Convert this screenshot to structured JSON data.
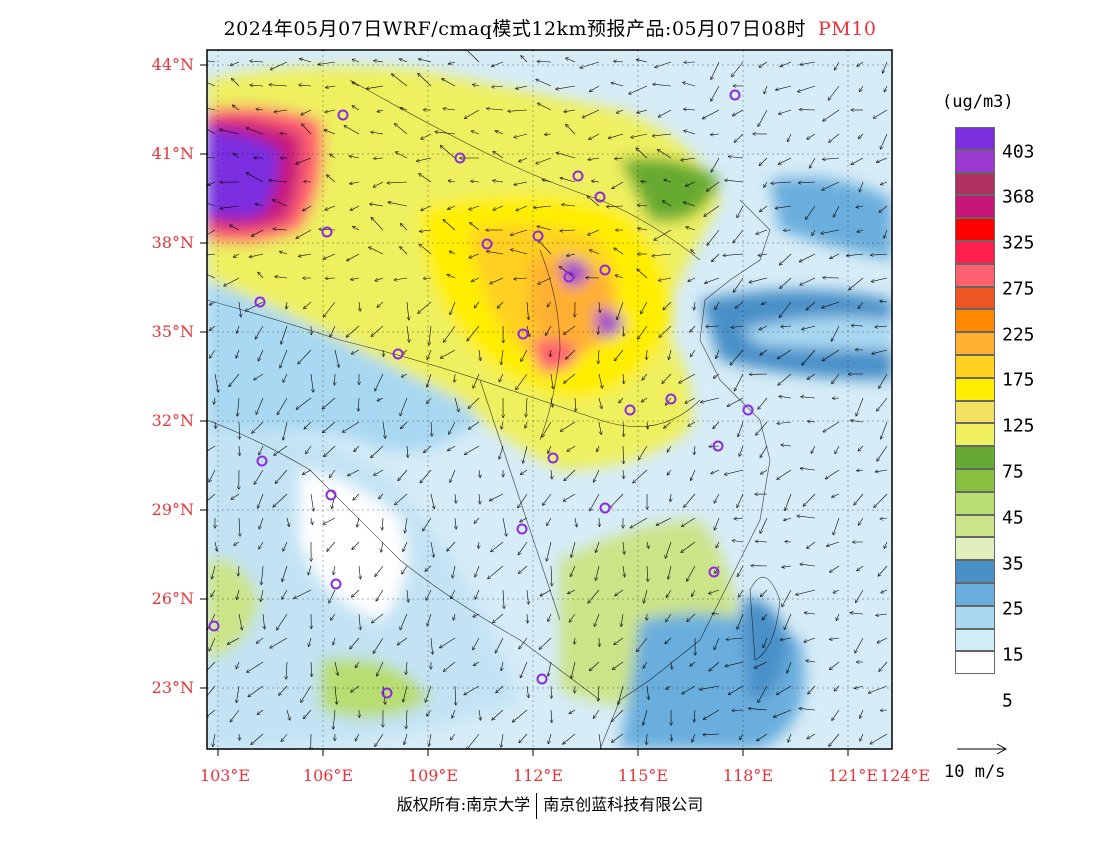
{
  "header": {
    "title": "2024年05月07日WRF/cmaq模式12km预报产品:05月07日08时",
    "species": "PM10"
  },
  "lat_labels": [
    "44°N",
    "41°N",
    "38°N",
    "35°N",
    "32°N",
    "29°N",
    "26°N",
    "23°N"
  ],
  "lon_labels": [
    "103°E",
    "106°E",
    "109°E",
    "112°E",
    "115°E",
    "118°E",
    "121°E",
    "124°E"
  ],
  "legend": {
    "unit": "(ug/m3)",
    "levels": [
      "403",
      "368",
      "325",
      "275",
      "225",
      "175",
      "125",
      "75",
      "45",
      "35",
      "25",
      "15",
      "5"
    ],
    "colors": [
      "#7a2ee0",
      "#9b3ad0",
      "#b03060",
      "#c8157a",
      "#ff0000",
      "#ff2050",
      "#ff6070",
      "#ee5522",
      "#ff8800",
      "#ffb030",
      "#ffd020",
      "#ffee00",
      "#f3e060",
      "#eef060",
      "#66aa33",
      "#88c040",
      "#b8dd70",
      "#cce488",
      "#dfeebb",
      "#4a90c8",
      "#6aaedd",
      "#a9d8f2",
      "#d0ecf8",
      "#ffffff"
    ],
    "wind_key_label": "10 m/s"
  },
  "footer": {
    "left": "版权所有:南京大学",
    "right": "南京创蓝科技有限公司"
  }
}
